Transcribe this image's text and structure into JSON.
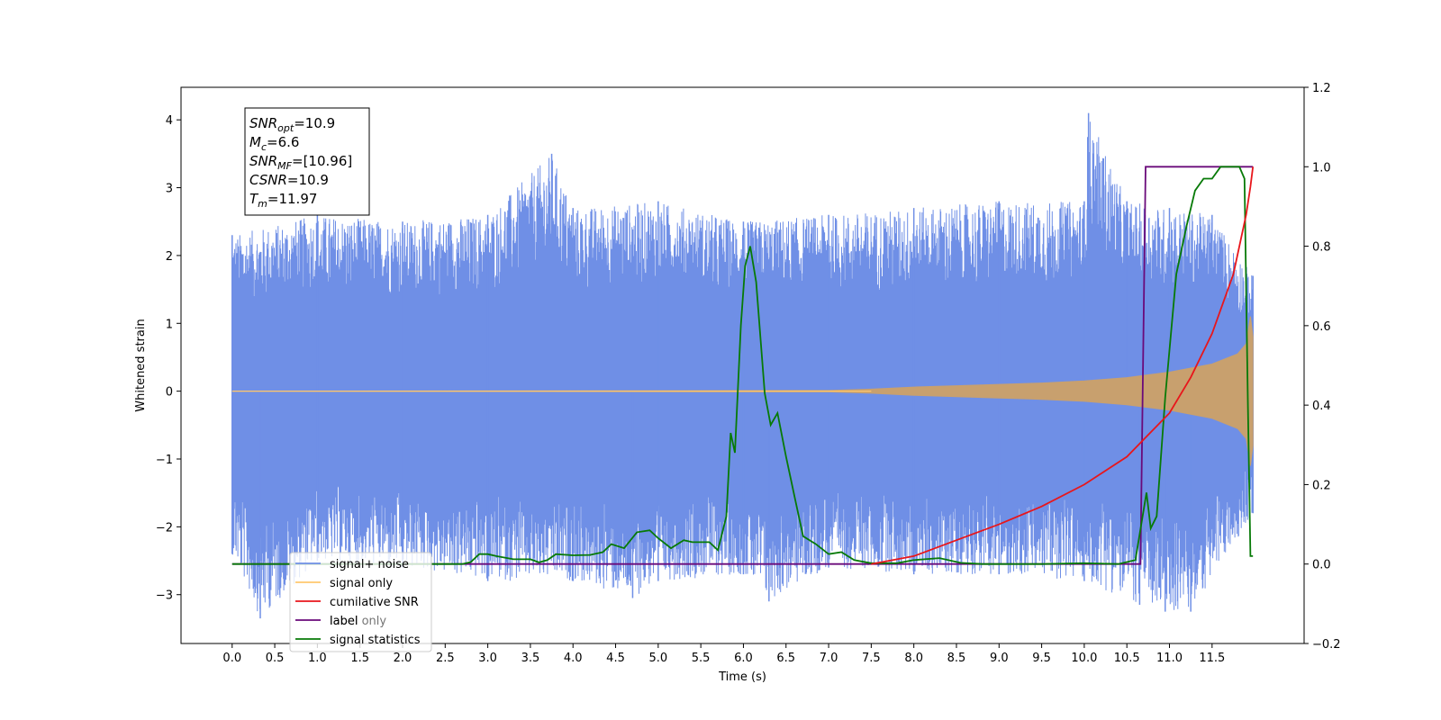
{
  "chart_data": {
    "type": "line",
    "title": "",
    "xlabel": "Time (s)",
    "ylabel": "Whitened strain",
    "xlim": [
      -0.6,
      12.58
    ],
    "ylim": [
      -3.72,
      4.48
    ],
    "y2lim": [
      -0.2,
      1.2
    ],
    "x_ticks": [
      0.0,
      0.5,
      1.0,
      1.5,
      2.0,
      2.5,
      3.0,
      3.5,
      4.0,
      4.5,
      5.0,
      5.5,
      6.0,
      6.5,
      7.0,
      7.5,
      8.0,
      8.5,
      9.0,
      9.5,
      10.0,
      10.5,
      11.0,
      11.5
    ],
    "x_tick_labels": [
      "0.0",
      "0.5",
      "1.0",
      "1.5",
      "2.0",
      "2.5",
      "3.0",
      "3.5",
      "4.0",
      "4.5",
      "5.0",
      "5.5",
      "6.0",
      "6.5",
      "7.0",
      "7.5",
      "8.0",
      "8.5",
      "9.0",
      "9.5",
      "10.0",
      "10.5",
      "11.0",
      "11.5"
    ],
    "y_ticks": [
      -3,
      -2,
      -1,
      0,
      1,
      2,
      3,
      4
    ],
    "y_tick_labels": [
      "−3",
      "−2",
      "−1",
      "0",
      "1",
      "2",
      "3",
      "4"
    ],
    "y2_ticks": [
      -0.2,
      0.0,
      0.2,
      0.4,
      0.6,
      0.8,
      1.0,
      1.2
    ],
    "y2_tick_labels": [
      "−0.2",
      "0.0",
      "0.2",
      "0.4",
      "0.6",
      "0.8",
      "1.0",
      "1.2"
    ],
    "legend_position": "lower-left",
    "grid": false,
    "series": [
      {
        "name": "signal+ noise",
        "axis": "left",
        "color": "#6f8fe6",
        "kind": "noise",
        "x_range": [
          0.0,
          11.98
        ],
        "envelope_upper": [
          [
            0.0,
            2.3
          ],
          [
            1.0,
            2.6
          ],
          [
            2.0,
            2.5
          ],
          [
            3.0,
            2.6
          ],
          [
            3.75,
            3.5
          ],
          [
            4.0,
            2.7
          ],
          [
            5.0,
            2.8
          ],
          [
            6.0,
            2.5
          ],
          [
            7.0,
            2.6
          ],
          [
            8.0,
            2.7
          ],
          [
            9.0,
            2.8
          ],
          [
            10.0,
            2.8
          ],
          [
            10.05,
            4.1
          ],
          [
            10.5,
            2.8
          ],
          [
            11.0,
            2.7
          ],
          [
            11.5,
            2.6
          ],
          [
            11.98,
            1.7
          ]
        ],
        "envelope_lower": [
          [
            0.0,
            -2.4
          ],
          [
            0.33,
            -3.35
          ],
          [
            1.0,
            -2.5
          ],
          [
            2.0,
            -2.6
          ],
          [
            3.0,
            -2.8
          ],
          [
            4.0,
            -2.8
          ],
          [
            4.7,
            -3.05
          ],
          [
            5.0,
            -2.8
          ],
          [
            6.0,
            -2.7
          ],
          [
            6.3,
            -3.1
          ],
          [
            7.0,
            -2.6
          ],
          [
            8.0,
            -2.7
          ],
          [
            9.0,
            -2.7
          ],
          [
            10.0,
            -2.8
          ],
          [
            10.65,
            -3.15
          ],
          [
            10.95,
            -3.25
          ],
          [
            11.25,
            -3.25
          ],
          [
            11.98,
            -1.8
          ]
        ]
      },
      {
        "name": "signal only",
        "axis": "left",
        "color": "#c8a06e",
        "kind": "chirp_envelope",
        "points": [
          [
            0.0,
            0.0
          ],
          [
            7.0,
            0.01
          ],
          [
            7.5,
            0.03
          ],
          [
            8.0,
            0.06
          ],
          [
            8.5,
            0.08
          ],
          [
            9.0,
            0.1
          ],
          [
            9.5,
            0.12
          ],
          [
            10.0,
            0.15
          ],
          [
            10.5,
            0.2
          ],
          [
            11.0,
            0.28
          ],
          [
            11.5,
            0.4
          ],
          [
            11.8,
            0.55
          ],
          [
            11.9,
            0.7
          ],
          [
            11.95,
            1.1
          ],
          [
            11.98,
            0.8
          ]
        ]
      },
      {
        "name": "cumilative SNR",
        "axis": "right",
        "color": "#e8161b",
        "points": [
          [
            7.5,
            0.0
          ],
          [
            8.0,
            0.02
          ],
          [
            8.5,
            0.06
          ],
          [
            9.0,
            0.1
          ],
          [
            9.5,
            0.145
          ],
          [
            10.0,
            0.2
          ],
          [
            10.5,
            0.27
          ],
          [
            11.0,
            0.38
          ],
          [
            11.25,
            0.47
          ],
          [
            11.5,
            0.58
          ],
          [
            11.75,
            0.73
          ],
          [
            11.9,
            0.88
          ],
          [
            11.95,
            0.95
          ],
          [
            11.98,
            1.0
          ]
        ]
      },
      {
        "name": "label",
        "axis": "right",
        "color": "#6a0a7a",
        "points": [
          [
            0.0,
            0.0
          ],
          [
            10.66,
            0.0
          ],
          [
            10.72,
            1.0
          ],
          [
            11.98,
            1.0
          ]
        ]
      },
      {
        "name": "signal statistics",
        "axis": "right",
        "color": "#077a07",
        "points": [
          [
            0.0,
            0.0
          ],
          [
            2.7,
            0.0
          ],
          [
            2.8,
            0.005
          ],
          [
            2.9,
            0.025
          ],
          [
            3.0,
            0.025
          ],
          [
            3.1,
            0.02
          ],
          [
            3.3,
            0.012
          ],
          [
            3.5,
            0.012
          ],
          [
            3.6,
            0.004
          ],
          [
            3.7,
            0.01
          ],
          [
            3.8,
            0.025
          ],
          [
            4.0,
            0.022
          ],
          [
            4.2,
            0.023
          ],
          [
            4.35,
            0.03
          ],
          [
            4.45,
            0.05
          ],
          [
            4.6,
            0.04
          ],
          [
            4.75,
            0.08
          ],
          [
            4.9,
            0.085
          ],
          [
            5.0,
            0.065
          ],
          [
            5.15,
            0.04
          ],
          [
            5.3,
            0.06
          ],
          [
            5.4,
            0.055
          ],
          [
            5.6,
            0.055
          ],
          [
            5.7,
            0.035
          ],
          [
            5.8,
            0.12
          ],
          [
            5.85,
            0.33
          ],
          [
            5.9,
            0.28
          ],
          [
            5.97,
            0.6
          ],
          [
            6.02,
            0.75
          ],
          [
            6.08,
            0.8
          ],
          [
            6.15,
            0.71
          ],
          [
            6.25,
            0.43
          ],
          [
            6.32,
            0.35
          ],
          [
            6.4,
            0.38
          ],
          [
            6.5,
            0.27
          ],
          [
            6.6,
            0.17
          ],
          [
            6.7,
            0.07
          ],
          [
            6.85,
            0.05
          ],
          [
            7.0,
            0.025
          ],
          [
            7.15,
            0.03
          ],
          [
            7.3,
            0.01
          ],
          [
            7.5,
            0.002
          ],
          [
            7.8,
            0.002
          ],
          [
            8.0,
            0.01
          ],
          [
            8.3,
            0.015
          ],
          [
            8.55,
            0.003
          ],
          [
            8.8,
            0.0
          ],
          [
            9.5,
            0.0
          ],
          [
            10.0,
            0.002
          ],
          [
            10.4,
            0.0
          ],
          [
            10.6,
            0.01
          ],
          [
            10.73,
            0.18
          ],
          [
            10.78,
            0.09
          ],
          [
            10.85,
            0.12
          ],
          [
            10.95,
            0.42
          ],
          [
            11.08,
            0.73
          ],
          [
            11.2,
            0.85
          ],
          [
            11.3,
            0.94
          ],
          [
            11.4,
            0.97
          ],
          [
            11.5,
            0.97
          ],
          [
            11.6,
            1.0
          ],
          [
            11.82,
            1.0
          ],
          [
            11.88,
            0.97
          ],
          [
            11.92,
            0.4
          ],
          [
            11.95,
            0.02
          ],
          [
            11.98,
            0.02
          ]
        ]
      }
    ],
    "legend": [
      {
        "label": "signal+ noise",
        "color": "#6f8fe6"
      },
      {
        "label": "signal only",
        "color": "#ffc86e"
      },
      {
        "label": "cumilative SNR",
        "color": "#e8161b"
      },
      {
        "label": "label",
        "color": "#6a0a7a"
      },
      {
        "label": "signal statistics",
        "color": "#077a07"
      }
    ],
    "annotations": {
      "box_lines": [
        {
          "sym": "SNR",
          "sub": "opt",
          "val": "=10.9"
        },
        {
          "sym": "M",
          "sub": "c",
          "val": "=6.6"
        },
        {
          "sym": "SNR",
          "sub": "MF",
          "val": "=[10.96]"
        },
        {
          "sym": "CSNR",
          "sub": "",
          "val": "=10.9"
        },
        {
          "sym": "T",
          "sub": "m",
          "val": "=11.97"
        }
      ],
      "overlap_text": "label only"
    }
  }
}
